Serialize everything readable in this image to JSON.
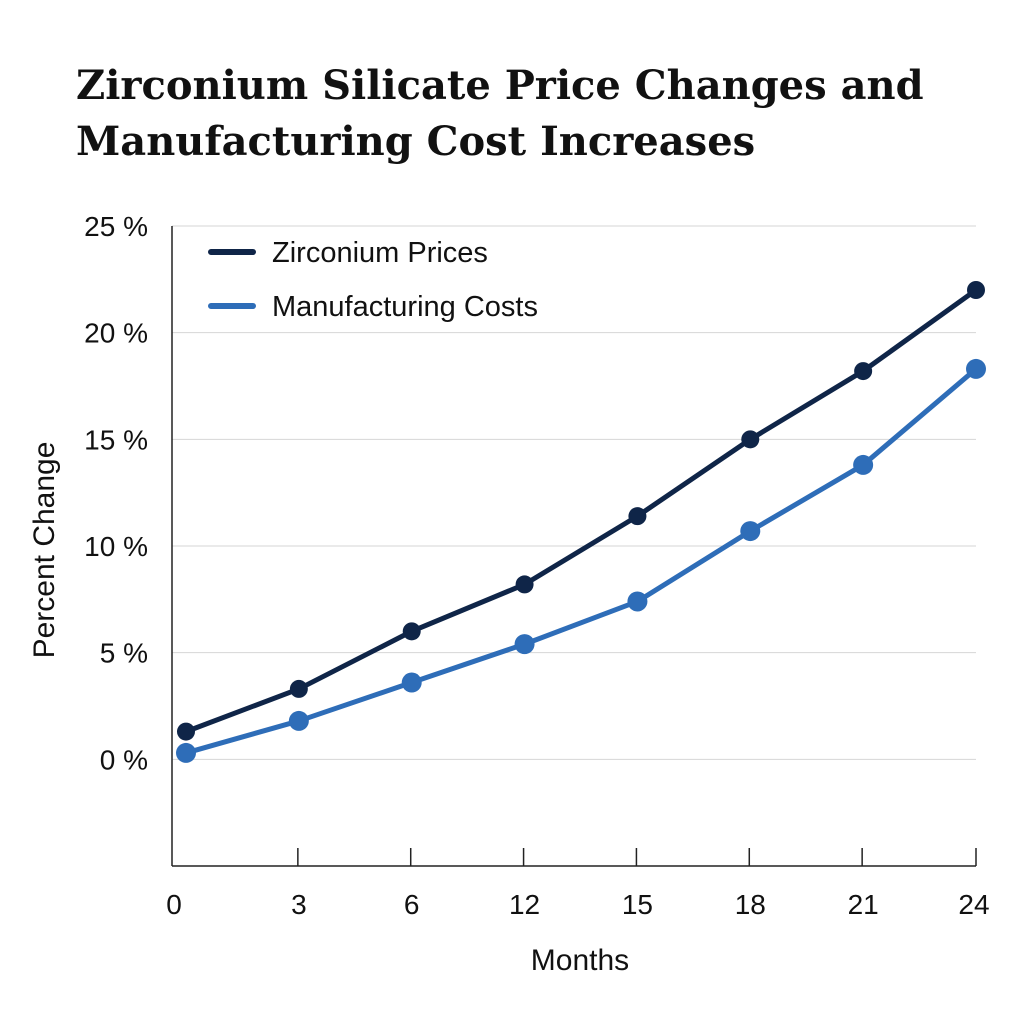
{
  "chart_data": {
    "type": "line",
    "title_lines": [
      "Zirconium Silicate Price Changes and",
      "Manufacturing Cost Increases"
    ],
    "xlabel": "Months",
    "ylabel": "Percent Change",
    "x_tick_labels": [
      "0",
      "3",
      "6",
      "12",
      "15",
      "18",
      "21",
      "24"
    ],
    "y_ticks": [
      0,
      5,
      10,
      15,
      20,
      25
    ],
    "y_tick_labels": [
      "0 %",
      "5 %",
      "10 %",
      "15 %",
      "20 %",
      "25 %"
    ],
    "ylim": [
      -5,
      25
    ],
    "grid": "horizontal",
    "legend_position": "top-left",
    "series": [
      {
        "name": "Zirconium Prices",
        "color": "#0f2548",
        "values": [
          1.3,
          3.3,
          6.0,
          8.2,
          11.4,
          15.0,
          18.2,
          22.0
        ]
      },
      {
        "name": "Manufacturing Costs",
        "color": "#2e6db8",
        "values": [
          0.3,
          1.8,
          3.6,
          5.4,
          7.4,
          10.7,
          13.8,
          18.3
        ]
      }
    ]
  }
}
